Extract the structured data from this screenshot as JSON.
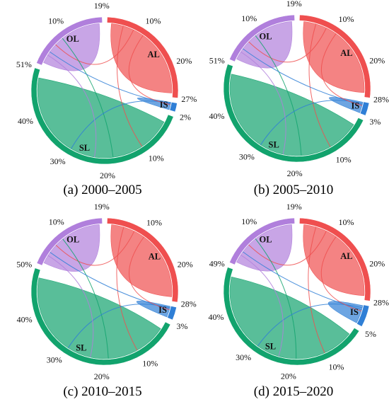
{
  "figure": {
    "panels": [
      {
        "caption": "(a) 2000–2005"
      },
      {
        "caption": "(b) 2005–2010"
      },
      {
        "caption": "(c) 2010–2015"
      },
      {
        "caption": "(d) 2015–2020"
      }
    ]
  },
  "chart_data": [
    {
      "type": "chord",
      "title": "(a) 2000–2005",
      "nodes": [
        {
          "name": "AL",
          "color": "#ef4f4f",
          "share_percent": 27
        },
        {
          "name": "IS",
          "color": "#2f7fd6",
          "share_percent": 2
        },
        {
          "name": "SL",
          "color": "#12a36d",
          "share_percent": 51
        },
        {
          "name": "OL",
          "color": "#b07fdc",
          "share_percent": 19
        }
      ],
      "tick_labels": [
        "19%",
        "10%",
        "20%",
        "27%",
        "2%",
        "10%",
        "20%",
        "30%",
        "40%",
        "51%",
        "10%"
      ]
    },
    {
      "type": "chord",
      "title": "(b) 2005–2010",
      "nodes": [
        {
          "name": "AL",
          "color": "#ef4f4f",
          "share_percent": 28
        },
        {
          "name": "IS",
          "color": "#2f7fd6",
          "share_percent": 3
        },
        {
          "name": "SL",
          "color": "#12a36d",
          "share_percent": 51
        },
        {
          "name": "OL",
          "color": "#b07fdc",
          "share_percent": 19
        }
      ],
      "tick_labels": [
        "19%",
        "10%",
        "20%",
        "28%",
        "3%",
        "10%",
        "20%",
        "30%",
        "40%",
        "51%",
        "10%"
      ]
    },
    {
      "type": "chord",
      "title": "(c) 2010–2015",
      "nodes": [
        {
          "name": "AL",
          "color": "#ef4f4f",
          "share_percent": 28
        },
        {
          "name": "IS",
          "color": "#2f7fd6",
          "share_percent": 3
        },
        {
          "name": "SL",
          "color": "#12a36d",
          "share_percent": 50
        },
        {
          "name": "OL",
          "color": "#b07fdc",
          "share_percent": 19
        }
      ],
      "tick_labels": [
        "19%",
        "10%",
        "20%",
        "28%",
        "3%",
        "10%",
        "20%",
        "30%",
        "40%",
        "50%",
        "10%"
      ]
    },
    {
      "type": "chord",
      "title": "(d) 2015–2020",
      "nodes": [
        {
          "name": "AL",
          "color": "#ef4f4f",
          "share_percent": 28
        },
        {
          "name": "IS",
          "color": "#2f7fd6",
          "share_percent": 5
        },
        {
          "name": "SL",
          "color": "#12a36d",
          "share_percent": 49
        },
        {
          "name": "OL",
          "color": "#b07fdc",
          "share_percent": 19
        }
      ],
      "tick_labels": [
        "19%",
        "10%",
        "20%",
        "28%",
        "5%",
        "10%",
        "20%",
        "30%",
        "40%",
        "49%",
        "10%"
      ]
    }
  ]
}
